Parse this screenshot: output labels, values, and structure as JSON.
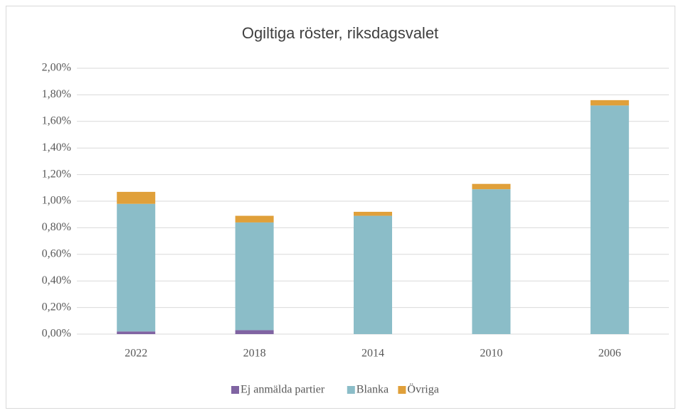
{
  "chart_data": {
    "type": "stacked_bar",
    "title": "Ogiltiga röster, riksdagsvalet",
    "categories": [
      "2022",
      "2018",
      "2014",
      "2010",
      "2006"
    ],
    "series": [
      {
        "name": "Ej anmälda partier",
        "color": "#8064a2",
        "values": [
          0.02,
          0.03,
          0,
          0,
          0
        ]
      },
      {
        "name": "Blanka",
        "color": "#8bbdc8",
        "values": [
          0.96,
          0.81,
          0.89,
          1.09,
          1.72
        ]
      },
      {
        "name": "Övriga",
        "color": "#e0a03a",
        "values": [
          0.09,
          0.05,
          0.03,
          0.04,
          0.04
        ]
      }
    ],
    "ylim": [
      0,
      2
    ],
    "yticks": [
      {
        "value": 0,
        "label": "0,00%"
      },
      {
        "value": 0.2,
        "label": "0,20%"
      },
      {
        "value": 0.4,
        "label": "0,40%"
      },
      {
        "value": 0.6,
        "label": "0,60%"
      },
      {
        "value": 0.8,
        "label": "0,80%"
      },
      {
        "value": 1,
        "label": "1,00%"
      },
      {
        "value": 1.2,
        "label": "1,20%"
      },
      {
        "value": 1.4,
        "label": "1,40%"
      },
      {
        "value": 1.6,
        "label": "1,60%"
      },
      {
        "value": 1.8,
        "label": "1,80%"
      },
      {
        "value": 2,
        "label": "2,00%"
      }
    ],
    "grid": true,
    "legend": "bottom"
  }
}
